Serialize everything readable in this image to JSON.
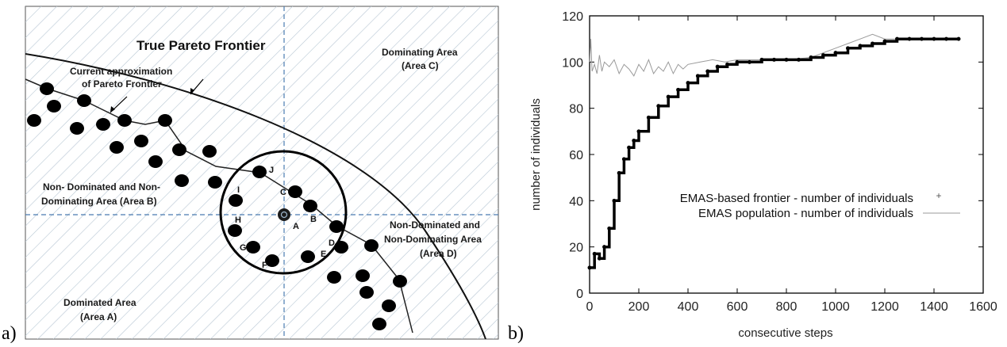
{
  "figure": {
    "panel_a": {
      "label": "a)",
      "title": "True Pareto Frontier",
      "approx_label_line1": "Current  approximation",
      "approx_label_line2": "of Pareto Frontier",
      "area_c_line1": "Dominating Area",
      "area_c_line2": "(Area C)",
      "area_b_line1": "Non-   Dominated and Non-",
      "area_b_line2": "Dominating Area (Area B)",
      "area_d_line1": "Non-Dominated and",
      "area_d_line2": "Non-Dominating Area",
      "area_d_line3": "(Area D)",
      "area_a_line1": "Dominated Area",
      "area_a_line2": "(Area A)",
      "point_labels": [
        "A",
        "B",
        "C",
        "D",
        "E",
        "F",
        "G",
        "H",
        "I",
        "J"
      ]
    },
    "panel_b": {
      "label": "b)"
    }
  },
  "chart_data": {
    "type": "line",
    "xlabel": "consecutive steps",
    "ylabel": "number of individuals",
    "xlim": [
      0,
      1600
    ],
    "ylim": [
      0,
      120
    ],
    "xticks": [
      "0",
      "200",
      "400",
      "600",
      "800",
      "1000",
      "1200",
      "1400",
      "1600"
    ],
    "yticks": [
      "0",
      "20",
      "40",
      "60",
      "80",
      "100",
      "120"
    ],
    "legend_position": "center-right",
    "series": [
      {
        "name": "EMAS-based frontier - number of individuals",
        "style": "points",
        "color": "#000000",
        "x": [
          0,
          20,
          40,
          60,
          80,
          100,
          120,
          140,
          160,
          180,
          200,
          240,
          280,
          320,
          360,
          400,
          440,
          480,
          520,
          560,
          600,
          650,
          700,
          750,
          800,
          850,
          900,
          950,
          1000,
          1050,
          1100,
          1150,
          1200,
          1250,
          1300,
          1350,
          1400,
          1450,
          1500
        ],
        "y": [
          11,
          17,
          15,
          20,
          28,
          40,
          52,
          58,
          63,
          66,
          70,
          76,
          81,
          85,
          88,
          91,
          94,
          96,
          98,
          99,
          100,
          100,
          101,
          101,
          101,
          101,
          102,
          103,
          104,
          106,
          107,
          108,
          109,
          110,
          110,
          110,
          110,
          110,
          110
        ]
      },
      {
        "name": "EMAS population - number of individuals",
        "style": "line",
        "color": "#9a9a9a",
        "x": [
          0,
          5,
          10,
          20,
          30,
          40,
          50,
          60,
          80,
          100,
          120,
          140,
          160,
          180,
          200,
          220,
          240,
          260,
          280,
          300,
          320,
          340,
          360,
          380,
          400,
          450,
          500,
          550,
          600,
          700,
          800,
          900,
          1000,
          1050,
          1100,
          1150,
          1200,
          1250,
          1300,
          1400,
          1500
        ],
        "y": [
          100,
          110,
          96,
          99,
          95,
          103,
          96,
          100,
          98,
          101,
          95,
          99,
          97,
          94,
          99,
          96,
          101,
          95,
          98,
          96,
          100,
          95,
          99,
          97,
          99,
          100,
          101,
          100,
          101,
          101,
          101,
          102,
          106,
          108,
          110,
          112,
          110,
          110,
          110,
          110,
          110
        ]
      }
    ]
  }
}
